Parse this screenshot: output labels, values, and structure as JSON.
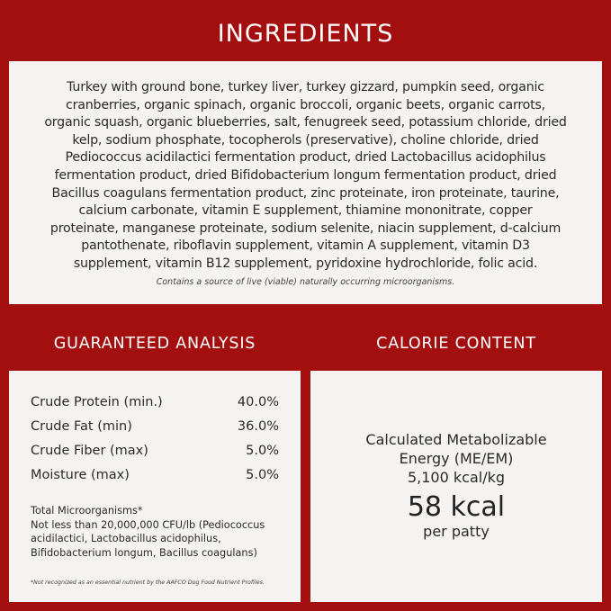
{
  "ingredients": {
    "title": "INGREDIENTS",
    "lines": [
      "Turkey with ground bone, turkey liver, turkey gizzard, pumpkin seed, organic",
      "cranberries, organic spinach, organic broccoli, organic beets, organic carrots,",
      "organic squash, organic blueberries, salt, fenugreek seed, potassium chloride, dried",
      "kelp, sodium phosphate, tocopherols (preservative), choline chloride, dried",
      "Pediococcus acidilactici fermentation product, dried Lactobacillus acidophilus",
      "fermentation product, dried Bifidobacterium longum fermentation product, dried",
      "Bacillus coagulans fermentation product, zinc proteinate, iron proteinate, taurine,",
      "calcium carbonate, vitamin E supplement, thiamine mononitrate, copper",
      "proteinate, manganese proteinate, sodium selenite, niacin supplement, d-calcium",
      "pantothenate, riboflavin supplement, vitamin A supplement, vitamin D3",
      "supplement, vitamin B12 supplement, pyridoxine hydrochloride, folic acid."
    ],
    "note": "Contains a source of live (viable) naturally occurring microorganisms."
  },
  "analysis": {
    "title": "GUARANTEED ANALYSIS",
    "rows": [
      {
        "label": "Crude Protein (min.)",
        "value": "40.0%"
      },
      {
        "label": "Crude Fat (min)",
        "value": "36.0%"
      },
      {
        "label": "Crude Fiber (max)",
        "value": "5.0%"
      },
      {
        "label": "Moisture (max)",
        "value": "5.0%"
      }
    ],
    "micro_title": "Total Microorganisms*",
    "micro_lines": [
      "Not less than 20,000,000 CFU/lb (Pediococcus",
      "acidilactici, Lactobacillus acidophilus,",
      "Bifidobacterium longum, Bacillus coagulans)"
    ],
    "footnote": "*Not recognized as an essential nutrient by the AAFCO Dog Food Nutrient Profiles."
  },
  "calorie": {
    "title": "CALORIE CONTENT",
    "lines": [
      "Calculated Metabolizable",
      "Energy (ME/EM)",
      "5,100 kcal/kg"
    ],
    "big": "58 kcal",
    "per": "per patty"
  },
  "colors": {
    "background": "#a30e0e",
    "panel": "#f4f3f1"
  }
}
